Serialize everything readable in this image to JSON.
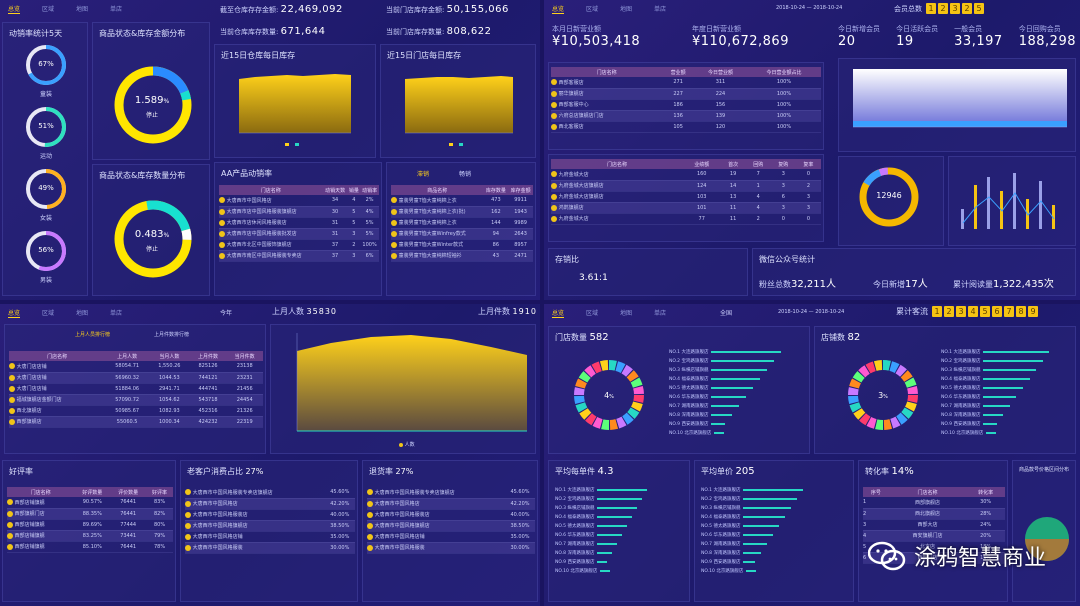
{
  "q1": {
    "tabs": [
      "总览",
      "区域",
      "地图",
      "单店"
    ],
    "kpi_top": [
      {
        "label": "截至仓库存存金额:",
        "value": "22,469,092"
      },
      {
        "label": "当前门店库存金额:",
        "value": "50,155,066"
      },
      {
        "label": "当前仓库库存数量:",
        "value": "671,644"
      },
      {
        "label": "当前门店库存数量:",
        "value": "808,622"
      }
    ],
    "rings_title": "动销率统计5天",
    "rings": [
      {
        "value": "67%",
        "label": "童装",
        "pct": 67,
        "color": "#3aa0ff"
      },
      {
        "value": "51%",
        "label": "运动",
        "pct": 51,
        "color": "#2fe0c0"
      },
      {
        "value": "49%",
        "label": "女装",
        "pct": 49,
        "color": "#ffb020"
      },
      {
        "value": "56%",
        "label": "男装",
        "pct": 56,
        "color": "#c879ff"
      }
    ],
    "donut1": {
      "title": "商品状态&库存金额分布",
      "value": "1.589",
      "unit": "%",
      "label": "停止"
    },
    "donut2": {
      "title": "商品状态&库存数量分布",
      "value": "0.483",
      "unit": "%",
      "label": "停止"
    },
    "area1_title": "近15日仓库每日库存",
    "area2_title": "近15日门店每日库存",
    "table_title": "AA产品动销率",
    "table_headers": [
      "门店名称",
      "动销天数",
      "销量",
      "动销率"
    ],
    "table_rows": [
      [
        "大唐西市中国风格店",
        "34",
        "4",
        "2%"
      ],
      [
        "大唐西市店中国风格服装旗舰店",
        "30",
        "5",
        "4%"
      ],
      [
        "大唐西市店休闲风格服装店",
        "31",
        "5",
        "5%"
      ],
      [
        "大唐西市店中国风格服装批发店",
        "31",
        "3",
        "5%"
      ],
      [
        "大唐西市北区中国服饰旗舰店",
        "37",
        "2",
        "100%"
      ],
      [
        "大唐西市南区中国风格服装专卖店",
        "37",
        "3",
        "6%"
      ]
    ],
    "table2_tabs": [
      "滞销",
      "畅销"
    ],
    "table2_headers": [
      "商品名称",
      "库存数量",
      "库存金额"
    ],
    "table2_rows": [
      [
        "童装男童T恤大童纯棉上衣",
        "473",
        "9911"
      ],
      [
        "童装男童T恤大童纯棉上衣(批)",
        "162",
        "1943"
      ],
      [
        "童装男童T恤大童纯棉上衣",
        "144",
        "9989"
      ],
      [
        "童装男童T恤大童Winfrey款式",
        "94",
        "2643"
      ],
      [
        "童装男童T恤大童Winter款式",
        "86",
        "8957"
      ],
      [
        "童装男童T恤大童纯棉短袖衫",
        "43",
        "2471"
      ]
    ]
  },
  "q2": {
    "tabs": [
      "总览",
      "区域",
      "地图",
      "单店"
    ],
    "date_range": "2018-10-24 — 2018-10-24",
    "members_label": "会员总数",
    "members_digits": [
      "1",
      "2",
      "3",
      "2",
      "5"
    ],
    "kpi": [
      {
        "label": "本月日新营业额",
        "value": "¥10,503,418"
      },
      {
        "label": "年度日新营业额",
        "value": "¥110,672,869"
      }
    ],
    "member_stats": [
      {
        "label": "今日新增会员",
        "value": "20"
      },
      {
        "label": "今日活跃会员",
        "value": "19"
      },
      {
        "label": "一般会员",
        "value": "33,197"
      },
      {
        "label": "今日回购会员",
        "value": "188,298"
      }
    ],
    "table1_headers": [
      "门店名称",
      "营业额",
      "今日营业额",
      "今日营业额占比"
    ],
    "table1_rows": [
      [
        "西部客服店",
        "271",
        "311",
        "100%"
      ],
      [
        "丽华旗舰店",
        "227",
        "224",
        "100%"
      ],
      [
        "西部客服中心",
        "186",
        "156",
        "100%"
      ],
      [
        "六府总店旗舰店门店",
        "136",
        "139",
        "100%"
      ],
      [
        "西北客服店",
        "105",
        "120",
        "100%"
      ]
    ],
    "table2_headers": [
      "门店名称",
      "业绩额",
      "首次",
      "回购",
      "复购",
      "复率"
    ],
    "table2_rows": [
      [
        "九府金城大店",
        "160",
        "19",
        "7",
        "3",
        "0"
      ],
      [
        "九府金城大店旗舰店",
        "124",
        "14",
        "1",
        "3",
        "2"
      ],
      [
        "九府金城大店旗舰店",
        "103",
        "13",
        "4",
        "6",
        "3"
      ],
      [
        "鸿鹄旗舰店",
        "101",
        "11",
        "4",
        "3",
        "3"
      ],
      [
        "九府金城大店",
        "77",
        "11",
        "2",
        "0",
        "0"
      ]
    ],
    "donut_value": "12946",
    "ratio_label": "存销比",
    "ratio_value": "3.61:1",
    "wechat_title": "微信公众号统计",
    "wechat_stats": [
      {
        "label": "粉丝总数",
        "value": "32,211人"
      },
      {
        "label": "今日新增",
        "value": "17人"
      },
      {
        "label": "累计阅读量",
        "value": "1,322,435次"
      }
    ]
  },
  "q3": {
    "tabs": [
      "总览",
      "区域",
      "地图",
      "单店"
    ],
    "range_label": "今年",
    "kpi_left": {
      "label": "上月人数",
      "value": "35830"
    },
    "kpi_right": {
      "label": "上月件数",
      "value": "1910"
    },
    "sub_tabs": [
      "上月人员排行榜",
      "上月件数排行榜"
    ],
    "table_headers": [
      "门店名称",
      "上月人数",
      "当月人数",
      "上月件数",
      "当月件数"
    ],
    "table_rows": [
      [
        "大唐门店店铺",
        "58054.71",
        "1,550.26",
        "825126",
        "23138"
      ],
      [
        "大唐门店店铺",
        "56960.32",
        "1044.53",
        "744121",
        "23231"
      ],
      [
        "大唐门店店铺",
        "51884.06",
        "2941.71",
        "444741",
        "21456"
      ],
      [
        "福城旗舰店金额门店",
        "57090.72",
        "1054.62",
        "543718",
        "24454"
      ],
      [
        "西北旗舰店",
        "50985.67",
        "1082.93",
        "452316",
        "21326"
      ],
      [
        "西部旗舰店",
        "55060.5",
        "1000.34",
        "424232",
        "22319"
      ]
    ],
    "chart_legend": "人数",
    "good_title": "好评率",
    "good_headers": [
      "门店名称",
      "好评数量",
      "评价数量",
      "好评率"
    ],
    "good_rows": [
      [
        "西部店铺旗舰",
        "90.57%",
        "76441",
        "83%"
      ],
      [
        "西部旗舰门店",
        "88.35%",
        "76441",
        "82%"
      ],
      [
        "西部店铺旗舰",
        "89.69%",
        "77444",
        "80%"
      ],
      [
        "西部店铺旗舰",
        "83.25%",
        "73441",
        "79%"
      ],
      [
        "西部店铺旗舰",
        "85.10%",
        "76441",
        "78%"
      ]
    ],
    "cust_title": "老客户消费占比",
    "cust_value": "27%",
    "cust_rows": [
      [
        "大唐西市中国风格服装专卖店旗舰店",
        "45.60%"
      ],
      [
        "大唐西市中国风格店",
        "42.20%"
      ],
      [
        "大唐西市中国风格服装店",
        "40.00%"
      ],
      [
        "大唐西市中国风格旗舰店",
        "38.50%"
      ],
      [
        "大唐西市中国风格店铺",
        "35.00%"
      ],
      [
        "大唐西市中国风格服装",
        "30.00%"
      ]
    ],
    "return_title": "退货率",
    "return_value": "27%",
    "return_rows": [
      [
        "大唐西市中国风格服装专卖店旗舰店",
        "45.60%"
      ],
      [
        "大唐西市中国风格店",
        "42.20%"
      ],
      [
        "大唐西市中国风格服装店",
        "40.00%"
      ],
      [
        "大唐西市中国风格旗舰店",
        "38.50%"
      ],
      [
        "大唐西市中国风格店铺",
        "35.00%"
      ],
      [
        "大唐西市中国风格服装",
        "30.00%"
      ]
    ]
  },
  "q4": {
    "tabs": [
      "总览",
      "区域",
      "地图",
      "单店"
    ],
    "range_label": "全国",
    "date_range": "2018-10-24 — 2018-10-24",
    "traffic_label": "累计客流",
    "traffic_digits": [
      "1",
      "2",
      "3",
      "4",
      "5",
      "6",
      "7",
      "8",
      "9"
    ],
    "stores_label": "门店数量",
    "stores_value": "582",
    "stores_center": "4",
    "stores_center_unit": "%",
    "stores_rows": [
      "NO.1 大连路旗舰店",
      "NO.2 宝鸡路旗舰店",
      "NO.3 纵横店铺旗舰",
      "NO.4 福泰路旗舰店",
      "NO.5 德太路旗舰店",
      "NO.6 华东路旗舰店",
      "NO.7 湖南路旗舰店",
      "NO.8 深南路旗舰店",
      "NO.9 西安路旗舰店",
      "NO.10 北京路旗舰店"
    ],
    "shop_label": "店铺数",
    "shop_value": "82",
    "shop_center": "3",
    "shop_center_unit": "%",
    "avg_items_label": "平均每单件",
    "avg_items_value": "4.3",
    "avg_price_label": "平均单价",
    "avg_price_value": "205",
    "conv_label": "转化率",
    "conv_value": "14%",
    "conv_headers": [
      "序号",
      "门店名称",
      "转化率"
    ],
    "conv_rows": [
      [
        "1",
        "西部旗舰店",
        "30%"
      ],
      [
        "2",
        "西北旗舰店",
        "28%"
      ],
      [
        "3",
        "西部大店",
        "24%"
      ],
      [
        "4",
        "西安旗舰门店",
        "20%"
      ],
      [
        "5",
        "北方店",
        "18%"
      ],
      [
        "6",
        "西部门店",
        "16%"
      ]
    ],
    "far_label": "商品款号价格区间分布",
    "watermark_text": "涂鸦智慧商业"
  },
  "colors": {
    "accent": "#ffd11a",
    "teal": "#27d8c4",
    "gold": "#f5c313"
  }
}
